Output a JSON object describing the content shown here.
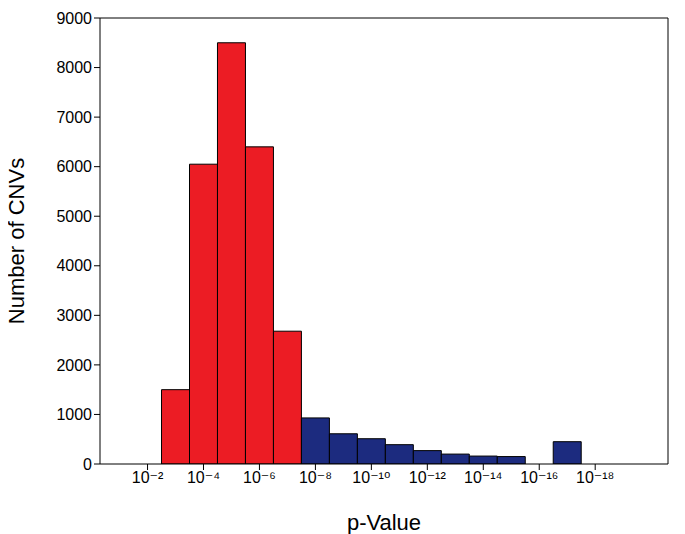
{
  "chart_data": {
    "type": "histogram",
    "x_label": "p-Value",
    "y_label": "Number of CNVs",
    "log": "x",
    "grid": false,
    "bins": [
      0.0031622776601683794,
      0.00031622776601683794,
      3.1622776601683795e-05,
      3.162277660168379e-06,
      3.162277660168379e-07,
      3.162277660168379e-08,
      3.1622776601683795e-09,
      3.1622776601683795e-10,
      3.1622776601683794e-11,
      3.1622776601683794e-12,
      3.162277660168379e-13,
      3.1622776601683796e-14,
      3.1622776601683794e-15,
      3.1622776601683793e-16,
      3.1622776601683796e-17,
      3.1622776601683795e-18
    ],
    "values": [
      1500,
      6050,
      8500,
      6400,
      2680,
      930,
      610,
      510,
      390,
      270,
      200,
      160,
      150,
      0,
      450
    ],
    "colors": [
      "#ec1c24",
      "#ec1c24",
      "#ec1c24",
      "#ec1c24",
      "#ec1c24",
      "#1c2b7f",
      "#1c2b7f",
      "#1c2b7f",
      "#1c2b7f",
      "#1c2b7f",
      "#1c2b7f",
      "#1c2b7f",
      "#1c2b7f",
      "#1c2b7f",
      "#1c2b7f"
    ],
    "xlim": [
      0.5,
      2.5e-21
    ],
    "xticks": [
      {
        "value": 0.01,
        "label": "10⁻²"
      },
      {
        "value": 0.0001,
        "label": "10⁻⁴"
      },
      {
        "value": 1e-06,
        "label": "10⁻⁶"
      },
      {
        "value": 1e-08,
        "label": "10⁻⁸"
      },
      {
        "value": 1e-10,
        "label": "10⁻¹⁰"
      },
      {
        "value": 1e-12,
        "label": "10⁻¹²"
      },
      {
        "value": 1e-14,
        "label": "10⁻¹⁴"
      },
      {
        "value": 1e-16,
        "label": "10⁻¹⁶"
      },
      {
        "value": 1e-18,
        "label": "10⁻¹⁸"
      }
    ],
    "ylim": [
      0,
      9000
    ],
    "yticks": [
      0,
      1000,
      2000,
      3000,
      4000,
      5000,
      6000,
      7000,
      8000,
      9000
    ]
  }
}
